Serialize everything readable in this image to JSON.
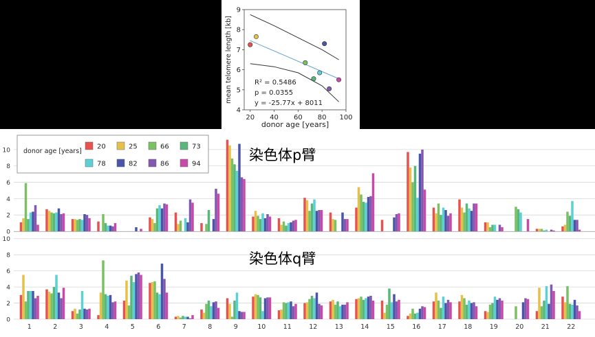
{
  "chart_data": [
    {
      "type": "scatter",
      "title": "",
      "xlabel": "donor age [years]",
      "ylabel": "mean telomere length [kb]",
      "xlim": [
        15,
        100
      ],
      "ylim": [
        4,
        9
      ],
      "xticks": [
        20,
        40,
        60,
        80,
        100
      ],
      "yticks": [
        4,
        5,
        6,
        7,
        8,
        9
      ],
      "points": [
        {
          "x": 20,
          "y": 7.25,
          "color": "#e8524e"
        },
        {
          "x": 25,
          "y": 7.65,
          "color": "#e5c04a"
        },
        {
          "x": 66,
          "y": 6.35,
          "color": "#7ac164"
        },
        {
          "x": 73,
          "y": 5.55,
          "color": "#57b87a"
        },
        {
          "x": 78,
          "y": 5.85,
          "color": "#5dd0d6"
        },
        {
          "x": 82,
          "y": 7.3,
          "color": "#4a55a8"
        },
        {
          "x": 86,
          "y": 5.05,
          "color": "#8458b0"
        },
        {
          "x": 94,
          "y": 5.5,
          "color": "#c84aa8"
        }
      ],
      "fit_line": {
        "x": [
          20,
          94
        ],
        "y": [
          7.45,
          5.55
        ],
        "color": "#6aa6d8"
      },
      "confidence_upper": {
        "x": [
          20,
          40,
          60,
          80,
          94
        ],
        "y": [
          8.75,
          8.2,
          7.6,
          7.0,
          6.5
        ]
      },
      "confidence_lower": {
        "x": [
          20,
          40,
          60,
          80,
          94
        ],
        "y": [
          6.3,
          6.15,
          5.85,
          5.2,
          4.4
        ]
      },
      "annotations": [
        "R² = 0.5486",
        "p = 0.0355",
        "y = -25.77x + 8011"
      ],
      "grid": false
    },
    {
      "type": "bar",
      "title": "染色体p臂",
      "ylim": [
        0,
        11
      ],
      "yticks": [
        0,
        2,
        4,
        6,
        8,
        10
      ],
      "categories": [
        "1",
        "2",
        "3",
        "4",
        "5",
        "6",
        "7",
        "8",
        "9",
        "10",
        "11",
        "12",
        "13",
        "14",
        "15",
        "16",
        "17",
        "18",
        "19",
        "20",
        "21",
        "22"
      ],
      "legend_title": "donor age [years]",
      "legend_position": "top-left",
      "series": [
        {
          "name": "20",
          "color": "#e8524e",
          "values": [
            1.1,
            2.7,
            1.5,
            1.2,
            0.0,
            1.7,
            2.3,
            1.0,
            11.2,
            1.8,
            1.6,
            4.1,
            2.3,
            2.9,
            1.4,
            9.7,
            2.9,
            3.9,
            1.1,
            0.0,
            0.3,
            0.6
          ]
        },
        {
          "name": "25",
          "color": "#e5c04a",
          "values": [
            1.6,
            2.5,
            1.5,
            0.0,
            0.0,
            1.5,
            0.9,
            0.0,
            10.5,
            2.5,
            0.8,
            3.8,
            1.5,
            5.4,
            0.0,
            7.8,
            2.2,
            2.9,
            1.1,
            0.0,
            0.3,
            0.8
          ]
        },
        {
          "name": "66",
          "color": "#7ac164",
          "values": [
            5.9,
            2.3,
            1.4,
            2.1,
            0.0,
            1.0,
            1.3,
            0.9,
            8.9,
            1.9,
            1.2,
            2.5,
            1.4,
            4.5,
            0.0,
            6.0,
            3.4,
            2.3,
            0.5,
            3.0,
            0.3,
            2.4
          ]
        },
        {
          "name": "73",
          "color": "#57b87a",
          "values": [
            1.5,
            2.2,
            1.5,
            1.0,
            0.0,
            2.8,
            0.0,
            2.6,
            8.2,
            1.5,
            0.7,
            3.4,
            0.0,
            3.6,
            0.0,
            8.0,
            2.0,
            3.4,
            0.8,
            2.7,
            0.1,
            1.9
          ]
        },
        {
          "name": "78",
          "color": "#5dd0d6",
          "values": [
            2.3,
            2.3,
            1.4,
            0.7,
            0.0,
            3.2,
            1.6,
            0.0,
            7.4,
            2.2,
            1.0,
            3.9,
            0.0,
            3.5,
            0.0,
            4.1,
            2.9,
            2.8,
            0.8,
            2.3,
            0.2,
            3.7
          ]
        },
        {
          "name": "82",
          "color": "#4a55a8",
          "values": [
            2.4,
            2.8,
            2.1,
            0.7,
            0.5,
            2.8,
            1.1,
            1.5,
            10.7,
            1.6,
            1.1,
            2.5,
            2.3,
            4.2,
            1.7,
            9.5,
            2.6,
            2.5,
            0.0,
            0.0,
            0.0,
            1.4
          ]
        },
        {
          "name": "86",
          "color": "#8458b0",
          "values": [
            3.2,
            2.1,
            2.0,
            0.6,
            0.0,
            3.4,
            3.9,
            5.2,
            6.6,
            2.1,
            1.3,
            2.6,
            1.5,
            4.3,
            2.1,
            10.0,
            1.9,
            3.4,
            0.8,
            0.0,
            0.2,
            1.4
          ]
        },
        {
          "name": "94",
          "color": "#c84aa8",
          "values": [
            0.8,
            2.2,
            1.6,
            1.0,
            0.3,
            3.3,
            3.5,
            4.6,
            6.4,
            1.8,
            1.4,
            2.6,
            1.5,
            7.1,
            2.2,
            5.1,
            2.2,
            3.4,
            0.5,
            1.5,
            0.1,
            0.2
          ]
        }
      ]
    },
    {
      "type": "bar",
      "title": "染色体q臂",
      "ylim": [
        0,
        10
      ],
      "yticks": [
        0,
        2,
        4,
        6,
        8,
        10
      ],
      "categories": [
        "1",
        "2",
        "3",
        "4",
        "5",
        "6",
        "7",
        "8",
        "9",
        "10",
        "11",
        "12",
        "13",
        "14",
        "15",
        "16",
        "17",
        "18",
        "19",
        "20",
        "21",
        "22"
      ],
      "series": [
        {
          "name": "20",
          "color": "#e8524e",
          "values": [
            3.0,
            3.7,
            1.0,
            0.5,
            2.3,
            4.5,
            0.3,
            1.2,
            2.6,
            2.8,
            1.1,
            2.0,
            2.2,
            2.5,
            2.3,
            0.4,
            2.2,
            2.2,
            1.0,
            0.0,
            1.0,
            2.8
          ]
        },
        {
          "name": "25",
          "color": "#e5c04a",
          "values": [
            5.5,
            3.4,
            1.3,
            3.3,
            4.8,
            4.6,
            0.4,
            0.8,
            1.9,
            3.1,
            1.2,
            2.1,
            2.4,
            2.6,
            0.8,
            0.7,
            3.3,
            3.0,
            0.9,
            0.0,
            3.9,
            2.1
          ]
        },
        {
          "name": "66",
          "color": "#7ac164",
          "values": [
            2.2,
            3.2,
            0.7,
            7.3,
            1.7,
            4.7,
            0.2,
            1.9,
            0.3,
            3.0,
            2.1,
            2.5,
            1.8,
            2.8,
            1.8,
            1.3,
            2.3,
            2.6,
            1.8,
            1.6,
            1.6,
            4.1
          ]
        },
        {
          "name": "73",
          "color": "#57b87a",
          "values": [
            3.5,
            4.0,
            1.2,
            3.1,
            5.4,
            3.3,
            0.4,
            2.3,
            2.3,
            2.7,
            2.0,
            2.9,
            2.2,
            2.4,
            3.8,
            0.7,
            1.4,
            1.8,
            2.0,
            0.0,
            2.3,
            1.9
          ]
        },
        {
          "name": "78",
          "color": "#5dd0d6",
          "values": [
            3.5,
            5.5,
            3.5,
            2.9,
            4.6,
            3.1,
            0.3,
            1.6,
            3.3,
            1.0,
            2.1,
            2.6,
            1.6,
            2.6,
            2.1,
            0.8,
            2.8,
            2.3,
            2.8,
            0.0,
            4.1,
            1.8
          ]
        },
        {
          "name": "82",
          "color": "#4a55a8",
          "values": [
            3.5,
            3.3,
            1.3,
            3.0,
            5.6,
            6.9,
            0.3,
            2.1,
            1.0,
            2.6,
            2.2,
            3.3,
            1.8,
            2.8,
            3.1,
            1.3,
            2.0,
            2.0,
            2.4,
            2.1,
            1.9,
            2.4
          ]
        },
        {
          "name": "86",
          "color": "#8458b0",
          "values": [
            2.6,
            2.6,
            1.2,
            2.1,
            5.8,
            5.0,
            0.1,
            2.2,
            0.9,
            2.7,
            1.6,
            1.9,
            1.8,
            2.9,
            2.2,
            1.6,
            2.4,
            2.1,
            2.6,
            2.6,
            4.3,
            1.7
          ]
        },
        {
          "name": "94",
          "color": "#c84aa8",
          "values": [
            2.9,
            3.9,
            1.3,
            2.2,
            5.5,
            3.3,
            0.5,
            1.4,
            0.9,
            2.7,
            1.9,
            1.7,
            2.1,
            2.3,
            2.4,
            1.5,
            2.1,
            1.6,
            2.3,
            2.5,
            3.5,
            1.0
          ]
        }
      ]
    }
  ]
}
